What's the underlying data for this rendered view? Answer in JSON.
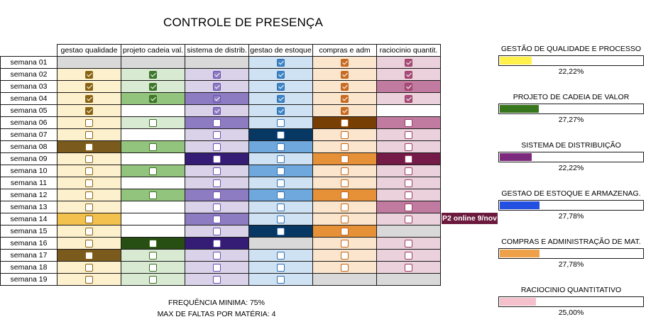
{
  "title": "CONTROLE DE PRESENÇA",
  "columns": [
    "gestao qualidade",
    "projeto cadeia val.",
    "sistema de distrib.",
    "gestao de estoque",
    "compras e adm",
    "raciocinio quantit."
  ],
  "icon": "checkbox-icon",
  "subjects": [
    {
      "border": "#8a6414",
      "check": "#8a6414",
      "shades": {
        "L": "#fdf0cc",
        "M": "#f2c14e",
        "D": "#7b5a1e",
        "G": "#d9d9d9",
        "W": "#ffffff"
      }
    },
    {
      "border": "#3b6e22",
      "check": "#3e7a2c",
      "shades": {
        "L": "#d9ead3",
        "M": "#93c47d",
        "D": "#274e13",
        "G": "#d9d9d9",
        "W": "#ffffff"
      }
    },
    {
      "border": "#6a4fb0",
      "check": "#8e7cc3",
      "shades": {
        "L": "#d9d2e9",
        "M": "#8e7cc3",
        "D": "#351c75",
        "G": "#d9d9d9",
        "W": "#ffffff"
      }
    },
    {
      "border": "#2f6fb3",
      "check": "#3d85c6",
      "shades": {
        "L": "#cfe2f3",
        "M": "#6fa8dc",
        "D": "#073763",
        "G": "#d9d9d9",
        "W": "#ffffff"
      }
    },
    {
      "border": "#c0651c",
      "check": "#c86c24",
      "shades": {
        "L": "#fce5cd",
        "M": "#e69138",
        "D": "#783f04",
        "G": "#d9d9d9",
        "W": "#ffffff"
      }
    },
    {
      "border": "#9c3d62",
      "check": "#a64d79",
      "shades": {
        "L": "#ead1dc",
        "M": "#c27ba0",
        "D": "#741b47",
        "G": "#d9d9d9",
        "W": "#ffffff"
      }
    }
  ],
  "weeks": [
    {
      "label": "semana 01",
      "cells": [
        [
          "G",
          0,
          0
        ],
        [
          "G",
          0,
          0
        ],
        [
          "G",
          0,
          0
        ],
        [
          "L",
          1,
          1
        ],
        [
          "L",
          1,
          1
        ],
        [
          "L",
          1,
          1
        ]
      ]
    },
    {
      "label": "semana 02",
      "cells": [
        [
          "L",
          1,
          1
        ],
        [
          "L",
          1,
          1
        ],
        [
          "L",
          1,
          1
        ],
        [
          "L",
          1,
          1
        ],
        [
          "L",
          1,
          1
        ],
        [
          "L",
          1,
          1
        ]
      ]
    },
    {
      "label": "semana 03",
      "cells": [
        [
          "L",
          1,
          1
        ],
        [
          "L",
          1,
          1
        ],
        [
          "L",
          1,
          1
        ],
        [
          "L",
          1,
          1
        ],
        [
          "L",
          1,
          1
        ],
        [
          "M",
          1,
          1
        ]
      ]
    },
    {
      "label": "semana 04",
      "cells": [
        [
          "L",
          1,
          1
        ],
        [
          "M",
          1,
          1
        ],
        [
          "M",
          1,
          1
        ],
        [
          "L",
          1,
          1
        ],
        [
          "L",
          1,
          1
        ],
        [
          "L",
          1,
          1
        ]
      ]
    },
    {
      "label": "semana 05",
      "cells": [
        [
          "L",
          1,
          1
        ],
        [
          "W",
          0,
          0
        ],
        [
          "L",
          1,
          1
        ],
        [
          "L",
          1,
          1
        ],
        [
          "L",
          1,
          1
        ],
        [
          "W",
          0,
          0
        ]
      ]
    },
    {
      "label": "semana 06",
      "cells": [
        [
          "L",
          1,
          0
        ],
        [
          "L",
          1,
          0
        ],
        [
          "M",
          1,
          0
        ],
        [
          "L",
          1,
          0
        ],
        [
          "D",
          1,
          0
        ],
        [
          "M",
          1,
          0
        ]
      ]
    },
    {
      "label": "semana 07",
      "cells": [
        [
          "L",
          1,
          0
        ],
        [
          "W",
          0,
          0
        ],
        [
          "L",
          1,
          0
        ],
        [
          "D",
          1,
          0
        ],
        [
          "L",
          1,
          0
        ],
        [
          "L",
          1,
          0
        ]
      ]
    },
    {
      "label": "semana 08",
      "cells": [
        [
          "D",
          1,
          0
        ],
        [
          "M",
          1,
          0
        ],
        [
          "L",
          1,
          0
        ],
        [
          "M",
          1,
          0
        ],
        [
          "L",
          1,
          0
        ],
        [
          "L",
          1,
          0
        ]
      ]
    },
    {
      "label": "semana 09",
      "cells": [
        [
          "L",
          1,
          0
        ],
        [
          "W",
          0,
          0
        ],
        [
          "D",
          1,
          0
        ],
        [
          "L",
          1,
          0
        ],
        [
          "M",
          1,
          0
        ],
        [
          "D",
          1,
          0
        ]
      ]
    },
    {
      "label": "semana 10",
      "cells": [
        [
          "L",
          1,
          0
        ],
        [
          "M",
          1,
          0
        ],
        [
          "L",
          1,
          0
        ],
        [
          "M",
          1,
          0
        ],
        [
          "L",
          1,
          0
        ],
        [
          "L",
          1,
          0
        ]
      ]
    },
    {
      "label": "semana 11",
      "cells": [
        [
          "L",
          1,
          0
        ],
        [
          "W",
          0,
          0
        ],
        [
          "L",
          1,
          0
        ],
        [
          "L",
          1,
          0
        ],
        [
          "L",
          1,
          0
        ],
        [
          "L",
          1,
          0
        ]
      ]
    },
    {
      "label": "semana 12",
      "cells": [
        [
          "L",
          1,
          0
        ],
        [
          "M",
          1,
          0
        ],
        [
          "M",
          1,
          0
        ],
        [
          "M",
          1,
          0
        ],
        [
          "M",
          1,
          0
        ],
        [
          "L",
          1,
          0
        ]
      ]
    },
    {
      "label": "semana 13",
      "cells": [
        [
          "L",
          1,
          0
        ],
        [
          "W",
          0,
          0
        ],
        [
          "L",
          1,
          0
        ],
        [
          "L",
          1,
          0
        ],
        [
          "L",
          1,
          0
        ],
        [
          "M",
          1,
          0
        ]
      ]
    },
    {
      "label": "semana 14",
      "cells": [
        [
          "M",
          1,
          0
        ],
        [
          "W",
          0,
          0
        ],
        [
          "M",
          1,
          0
        ],
        [
          "L",
          1,
          0
        ],
        [
          "L",
          1,
          0
        ],
        [
          "L",
          1,
          0
        ]
      ]
    },
    {
      "label": "semana 15",
      "cells": [
        [
          "L",
          1,
          0
        ],
        [
          "W",
          0,
          0
        ],
        [
          "L",
          1,
          0
        ],
        [
          "D",
          1,
          0
        ],
        [
          "M",
          1,
          0
        ],
        [
          "G",
          0,
          0
        ]
      ]
    },
    {
      "label": "semana 16",
      "cells": [
        [
          "L",
          1,
          0
        ],
        [
          "D",
          1,
          0
        ],
        [
          "D",
          1,
          0
        ],
        [
          "G",
          0,
          0
        ],
        [
          "L",
          1,
          0
        ],
        [
          "L",
          1,
          0
        ]
      ]
    },
    {
      "label": "semana 17",
      "cells": [
        [
          "D",
          1,
          0
        ],
        [
          "L",
          1,
          0
        ],
        [
          "L",
          1,
          0
        ],
        [
          "L",
          1,
          0
        ],
        [
          "L",
          1,
          0
        ],
        [
          "L",
          1,
          0
        ]
      ]
    },
    {
      "label": "semana 18",
      "cells": [
        [
          "L",
          1,
          0
        ],
        [
          "L",
          1,
          0
        ],
        [
          "L",
          1,
          0
        ],
        [
          "L",
          1,
          0
        ],
        [
          "L",
          1,
          0
        ],
        [
          "L",
          1,
          0
        ]
      ]
    },
    {
      "label": "semana 19",
      "cells": [
        [
          "L",
          1,
          0
        ],
        [
          "L",
          1,
          0
        ],
        [
          "L",
          1,
          0
        ],
        [
          "L",
          1,
          0
        ],
        [
          "G",
          0,
          0
        ],
        [
          "G",
          0,
          0
        ]
      ]
    }
  ],
  "note": "P2 online 9/nov",
  "footer": {
    "min_freq": "FREQUÊNCIA MINIMA: 75%",
    "max_faltas": "MAX DE FALTAS POR MATÉRIA: 4"
  },
  "summary": [
    {
      "label": "GESTÃO DE QUALIDADE E PROCESSO",
      "pct": "22,22%",
      "value": 0.2222,
      "color": "#fff04a"
    },
    {
      "label": "PROJETO DE CADEIA DE VALOR",
      "pct": "27,27%",
      "value": 0.2727,
      "color": "#38761d"
    },
    {
      "label": "SISTEMA DE DISTRIBUIÇÃO",
      "pct": "22,22%",
      "value": 0.2222,
      "color": "#7b2a7e"
    },
    {
      "label": "GESTAO DE ESTOQUE E ARMAZENAG.",
      "pct": "27,78%",
      "value": 0.2778,
      "color": "#2350e0"
    },
    {
      "label": "COMPRAS E ADMINISTRAÇÃO DE MAT.",
      "pct": "27,78%",
      "value": 0.2778,
      "color": "#efa14a"
    },
    {
      "label": "RACIOCINIO QUANTITATIVO",
      "pct": "25,00%",
      "value": 0.25,
      "color": "#f4c0cc"
    }
  ]
}
